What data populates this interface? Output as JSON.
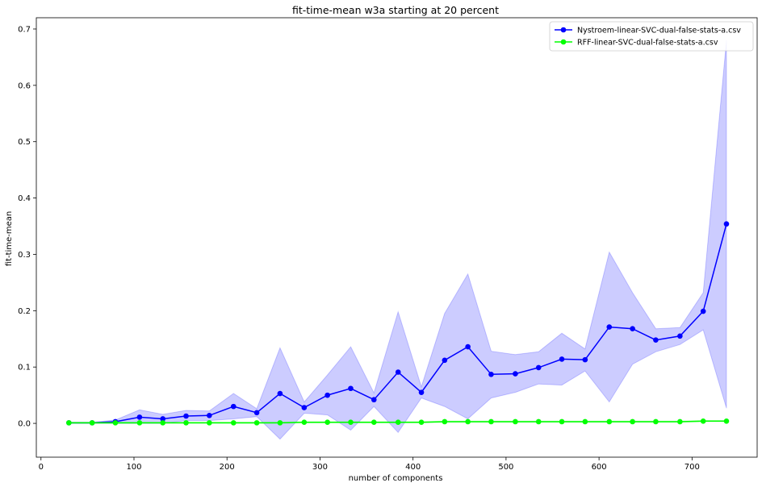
{
  "chart_data": {
    "type": "line",
    "title": "fit-time-mean w3a starting at 20 percent",
    "xlabel": "number of components",
    "ylabel": "fit-time-mean",
    "xlim": [
      -5,
      770
    ],
    "ylim": [
      -0.06,
      0.72
    ],
    "xticks": [
      0,
      100,
      200,
      300,
      400,
      500,
      600,
      700
    ],
    "yticks": [
      0.0,
      0.1,
      0.2,
      0.3,
      0.4,
      0.5,
      0.6,
      0.7
    ],
    "xtick_labels": [
      "0",
      "100",
      "200",
      "300",
      "400",
      "500",
      "600",
      "700"
    ],
    "ytick_labels": [
      "0.0",
      "0.1",
      "0.2",
      "0.3",
      "0.4",
      "0.5",
      "0.6",
      "0.7"
    ],
    "legend_position": "top-right",
    "grid": false,
    "x": [
      30,
      55,
      80,
      106,
      131,
      156,
      181,
      207,
      232,
      257,
      283,
      308,
      333,
      358,
      384,
      409,
      434,
      459,
      484,
      510,
      535,
      560,
      585,
      611,
      636,
      661,
      687,
      712,
      737
    ],
    "series": [
      {
        "name": "Nystroem-linear-SVC-dual-false-stats-a.csv",
        "color": "#0000ff",
        "band_color": "#0000ff",
        "values": [
          0.001,
          0.001,
          0.003,
          0.011,
          0.008,
          0.013,
          0.014,
          0.03,
          0.019,
          0.053,
          0.028,
          0.05,
          0.062,
          0.042,
          0.091,
          0.055,
          0.112,
          0.136,
          0.087,
          0.088,
          0.099,
          0.114,
          0.113,
          0.171,
          0.168,
          0.148,
          0.155,
          0.199,
          0.354
        ],
        "lower": [
          0.0,
          0.0,
          0.0,
          0.0,
          0.0,
          0.005,
          0.005,
          0.008,
          0.012,
          -0.028,
          0.018,
          0.015,
          -0.012,
          0.03,
          -0.016,
          0.045,
          0.03,
          0.008,
          0.045,
          0.055,
          0.07,
          0.068,
          0.093,
          0.038,
          0.105,
          0.127,
          0.14,
          0.166,
          0.027
        ],
        "upper": [
          0.002,
          0.002,
          0.006,
          0.024,
          0.016,
          0.023,
          0.022,
          0.053,
          0.026,
          0.134,
          0.038,
          0.086,
          0.136,
          0.054,
          0.198,
          0.065,
          0.195,
          0.265,
          0.128,
          0.122,
          0.127,
          0.16,
          0.132,
          0.304,
          0.232,
          0.168,
          0.17,
          0.232,
          0.68
        ]
      },
      {
        "name": "RFF-linear-SVC-dual-false-stats-a.csv",
        "color": "#00ff00",
        "band_color": "#00ff00",
        "values": [
          0.001,
          0.001,
          0.001,
          0.001,
          0.001,
          0.001,
          0.001,
          0.001,
          0.001,
          0.001,
          0.002,
          0.002,
          0.002,
          0.002,
          0.002,
          0.002,
          0.003,
          0.003,
          0.003,
          0.003,
          0.003,
          0.003,
          0.003,
          0.003,
          0.003,
          0.003,
          0.003,
          0.004,
          0.004
        ],
        "lower": [
          0.0,
          0.0,
          0.0,
          0.0,
          0.0,
          0.0,
          0.0,
          0.0,
          0.0,
          0.0,
          0.001,
          0.001,
          0.001,
          0.001,
          0.001,
          0.001,
          0.002,
          0.002,
          0.002,
          0.002,
          0.002,
          0.002,
          0.002,
          0.002,
          0.002,
          0.002,
          0.002,
          0.003,
          0.003
        ],
        "upper": [
          0.002,
          0.002,
          0.002,
          0.002,
          0.002,
          0.002,
          0.002,
          0.002,
          0.002,
          0.002,
          0.003,
          0.003,
          0.003,
          0.003,
          0.003,
          0.003,
          0.004,
          0.004,
          0.004,
          0.004,
          0.004,
          0.004,
          0.004,
          0.004,
          0.004,
          0.004,
          0.004,
          0.005,
          0.005
        ]
      }
    ]
  }
}
